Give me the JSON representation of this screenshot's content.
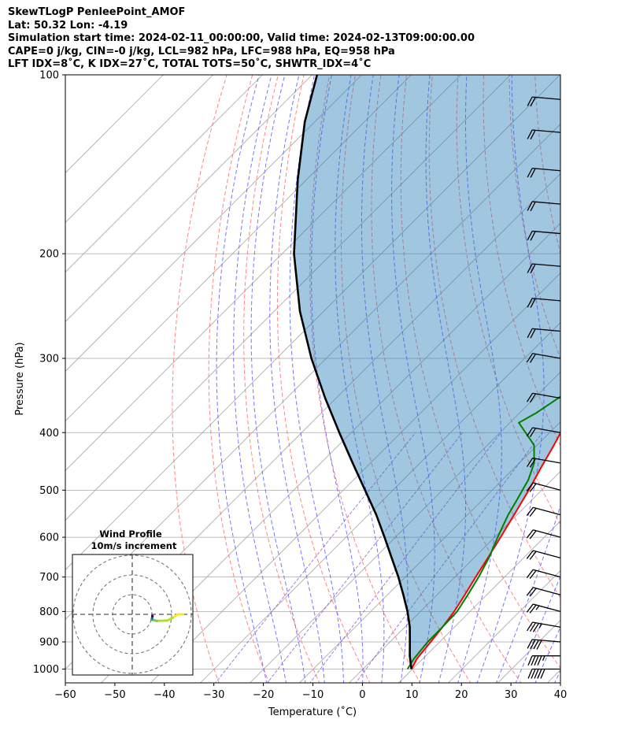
{
  "header": {
    "line1": "SkewTLogP PenleePoint_AMOF",
    "line2": "Lat: 50.32   Lon: -4.19",
    "line3": "Simulation start time: 2024-02-11_00:00:00, Valid time: 2024-02-13T09:00:00.00",
    "line4": "CAPE=0 j/kg, CIN=-0 j/kg, LCL=982 hPa, LFC=988 hPa, EQ=958 hPa",
    "line5": "LFT IDX=8˚C, K IDX=27˚C, TOTAL TOTS=50˚C, SHWTR_IDX=4˚C"
  },
  "chart_data": {
    "type": "line",
    "subtype": "skew-t log-p",
    "xlabel": "Temperature (˚C)",
    "ylabel": "Pressure (hPa)",
    "xlim": [
      -60,
      40
    ],
    "ylim": [
      1050,
      100
    ],
    "yscale": "log",
    "grid": true,
    "x_ticks": [
      "−60",
      "−50",
      "−40",
      "−30",
      "−20",
      "−10",
      "0",
      "10",
      "20",
      "30",
      "40"
    ],
    "y_ticks": [
      "100",
      "200",
      "300",
      "400",
      "500",
      "600",
      "700",
      "800",
      "900",
      "1000"
    ],
    "series": [
      {
        "name": "temperature",
        "color": "#ff0000",
        "points": [
          [
            9.8,
            1000
          ],
          [
            8.8,
            960
          ],
          [
            8.2,
            900
          ],
          [
            7.6,
            850
          ],
          [
            6.8,
            800
          ],
          [
            5.6,
            750
          ],
          [
            4.2,
            700
          ],
          [
            2.8,
            650
          ],
          [
            1.2,
            600
          ],
          [
            -0.6,
            550
          ],
          [
            -2.6,
            500
          ],
          [
            -4.6,
            460
          ],
          [
            -6.6,
            420
          ],
          [
            -9.0,
            380
          ],
          [
            -11.4,
            350
          ],
          [
            -14.0,
            320
          ],
          [
            -16.4,
            290
          ],
          [
            -17.6,
            270
          ],
          [
            -16.8,
            252
          ],
          [
            -16.0,
            240
          ],
          [
            -15.2,
            228
          ],
          [
            -14.6,
            216
          ],
          [
            -13.6,
            205
          ],
          [
            -11.4,
            190
          ],
          [
            -9.2,
            176
          ],
          [
            -6.6,
            164
          ],
          [
            -4.4,
            155
          ],
          [
            -2.2,
            145
          ],
          [
            0.2,
            136
          ],
          [
            2.4,
            128
          ],
          [
            4.6,
            120
          ],
          [
            7.2,
            112
          ],
          [
            9.8,
            105
          ],
          [
            10.6,
            100
          ]
        ]
      },
      {
        "name": "dewpoint",
        "color": "#008000",
        "points": [
          [
            9.0,
            1000
          ],
          [
            8.2,
            960
          ],
          [
            7.6,
            900
          ],
          [
            7.6,
            850
          ],
          [
            7.4,
            800
          ],
          [
            6.2,
            750
          ],
          [
            4.8,
            700
          ],
          [
            3.0,
            650
          ],
          [
            0.6,
            600
          ],
          [
            -1.8,
            550
          ],
          [
            -3.0,
            520
          ],
          [
            -4.8,
            480
          ],
          [
            -7.0,
            450
          ],
          [
            -10.6,
            420
          ],
          [
            -18.2,
            385
          ],
          [
            -16.6,
            370
          ],
          [
            -15.2,
            350
          ],
          [
            -14.4,
            335
          ],
          [
            -15.6,
            315
          ],
          [
            -17.0,
            300
          ],
          [
            -17.4,
            280
          ],
          [
            -17.6,
            265
          ],
          [
            -17.4,
            252
          ],
          [
            -17.0,
            240
          ],
          [
            -16.4,
            228
          ],
          [
            -16.4,
            215
          ],
          [
            -16.0,
            205
          ],
          [
            -16.4,
            198
          ],
          [
            -17.8,
            188
          ],
          [
            -18.6,
            180
          ],
          [
            -18.4,
            172
          ],
          [
            -16.6,
            162
          ],
          [
            -14.2,
            150
          ],
          [
            -11.6,
            138
          ],
          [
            -9.4,
            128
          ],
          [
            -6.8,
            118
          ],
          [
            -4.2,
            110
          ],
          [
            -1.8,
            103
          ],
          [
            -1.0,
            100
          ]
        ]
      },
      {
        "name": "parcel",
        "color": "#000000",
        "points": [
          [
            9.8,
            1000
          ],
          [
            8.6,
            980
          ],
          [
            6.8,
            950
          ],
          [
            4.0,
            900
          ],
          [
            1.0,
            850
          ],
          [
            -2.6,
            800
          ],
          [
            -6.8,
            750
          ],
          [
            -11.4,
            700
          ],
          [
            -16.6,
            650
          ],
          [
            -22.2,
            600
          ],
          [
            -28.4,
            550
          ],
          [
            -35.6,
            500
          ],
          [
            -43.6,
            450
          ],
          [
            -52.4,
            400
          ],
          [
            -62.2,
            350
          ],
          [
            -73.0,
            300
          ],
          [
            -84.8,
            250
          ],
          [
            -97.6,
            200
          ],
          [
            -111.8,
            150
          ],
          [
            -122.0,
            120
          ],
          [
            -129.0,
            100
          ]
        ]
      }
    ],
    "shaded_region": "area between parcel profile and temperature",
    "background_lines": {
      "isotherms_color": "#a8a8a8",
      "dry_adiabats_color": "#ff6666",
      "moist_adiabats_color": "#5555ff",
      "mixing_ratio_color": "#8844cc"
    },
    "wind_barbs": [
      {
        "p": 1000,
        "dir": 270,
        "speed_kt": 50
      },
      {
        "p": 950,
        "dir": 270,
        "speed_kt": 45
      },
      {
        "p": 900,
        "dir": 275,
        "speed_kt": 40
      },
      {
        "p": 850,
        "dir": 280,
        "speed_kt": 35
      },
      {
        "p": 800,
        "dir": 285,
        "speed_kt": 25
      },
      {
        "p": 750,
        "dir": 285,
        "speed_kt": 20
      },
      {
        "p": 700,
        "dir": 285,
        "speed_kt": 20
      },
      {
        "p": 650,
        "dir": 285,
        "speed_kt": 20
      },
      {
        "p": 600,
        "dir": 285,
        "speed_kt": 20
      },
      {
        "p": 550,
        "dir": 285,
        "speed_kt": 20
      },
      {
        "p": 500,
        "dir": 285,
        "speed_kt": 20
      },
      {
        "p": 450,
        "dir": 280,
        "speed_kt": 20
      },
      {
        "p": 400,
        "dir": 280,
        "speed_kt": 20
      },
      {
        "p": 350,
        "dir": 280,
        "speed_kt": 20
      },
      {
        "p": 300,
        "dir": 280,
        "speed_kt": 20
      },
      {
        "p": 270,
        "dir": 275,
        "speed_kt": 20
      },
      {
        "p": 240,
        "dir": 275,
        "speed_kt": 20
      },
      {
        "p": 210,
        "dir": 275,
        "speed_kt": 20
      },
      {
        "p": 185,
        "dir": 275,
        "speed_kt": 20
      },
      {
        "p": 165,
        "dir": 275,
        "speed_kt": 20
      },
      {
        "p": 145,
        "dir": 275,
        "speed_kt": 20
      },
      {
        "p": 125,
        "dir": 275,
        "speed_kt": 20
      },
      {
        "p": 110,
        "dir": 275,
        "speed_kt": 20
      }
    ],
    "inset": {
      "title_line1": "Wind Profile",
      "title_line2": "10m/s increment",
      "rings_ms": [
        10,
        20,
        30
      ]
    }
  }
}
